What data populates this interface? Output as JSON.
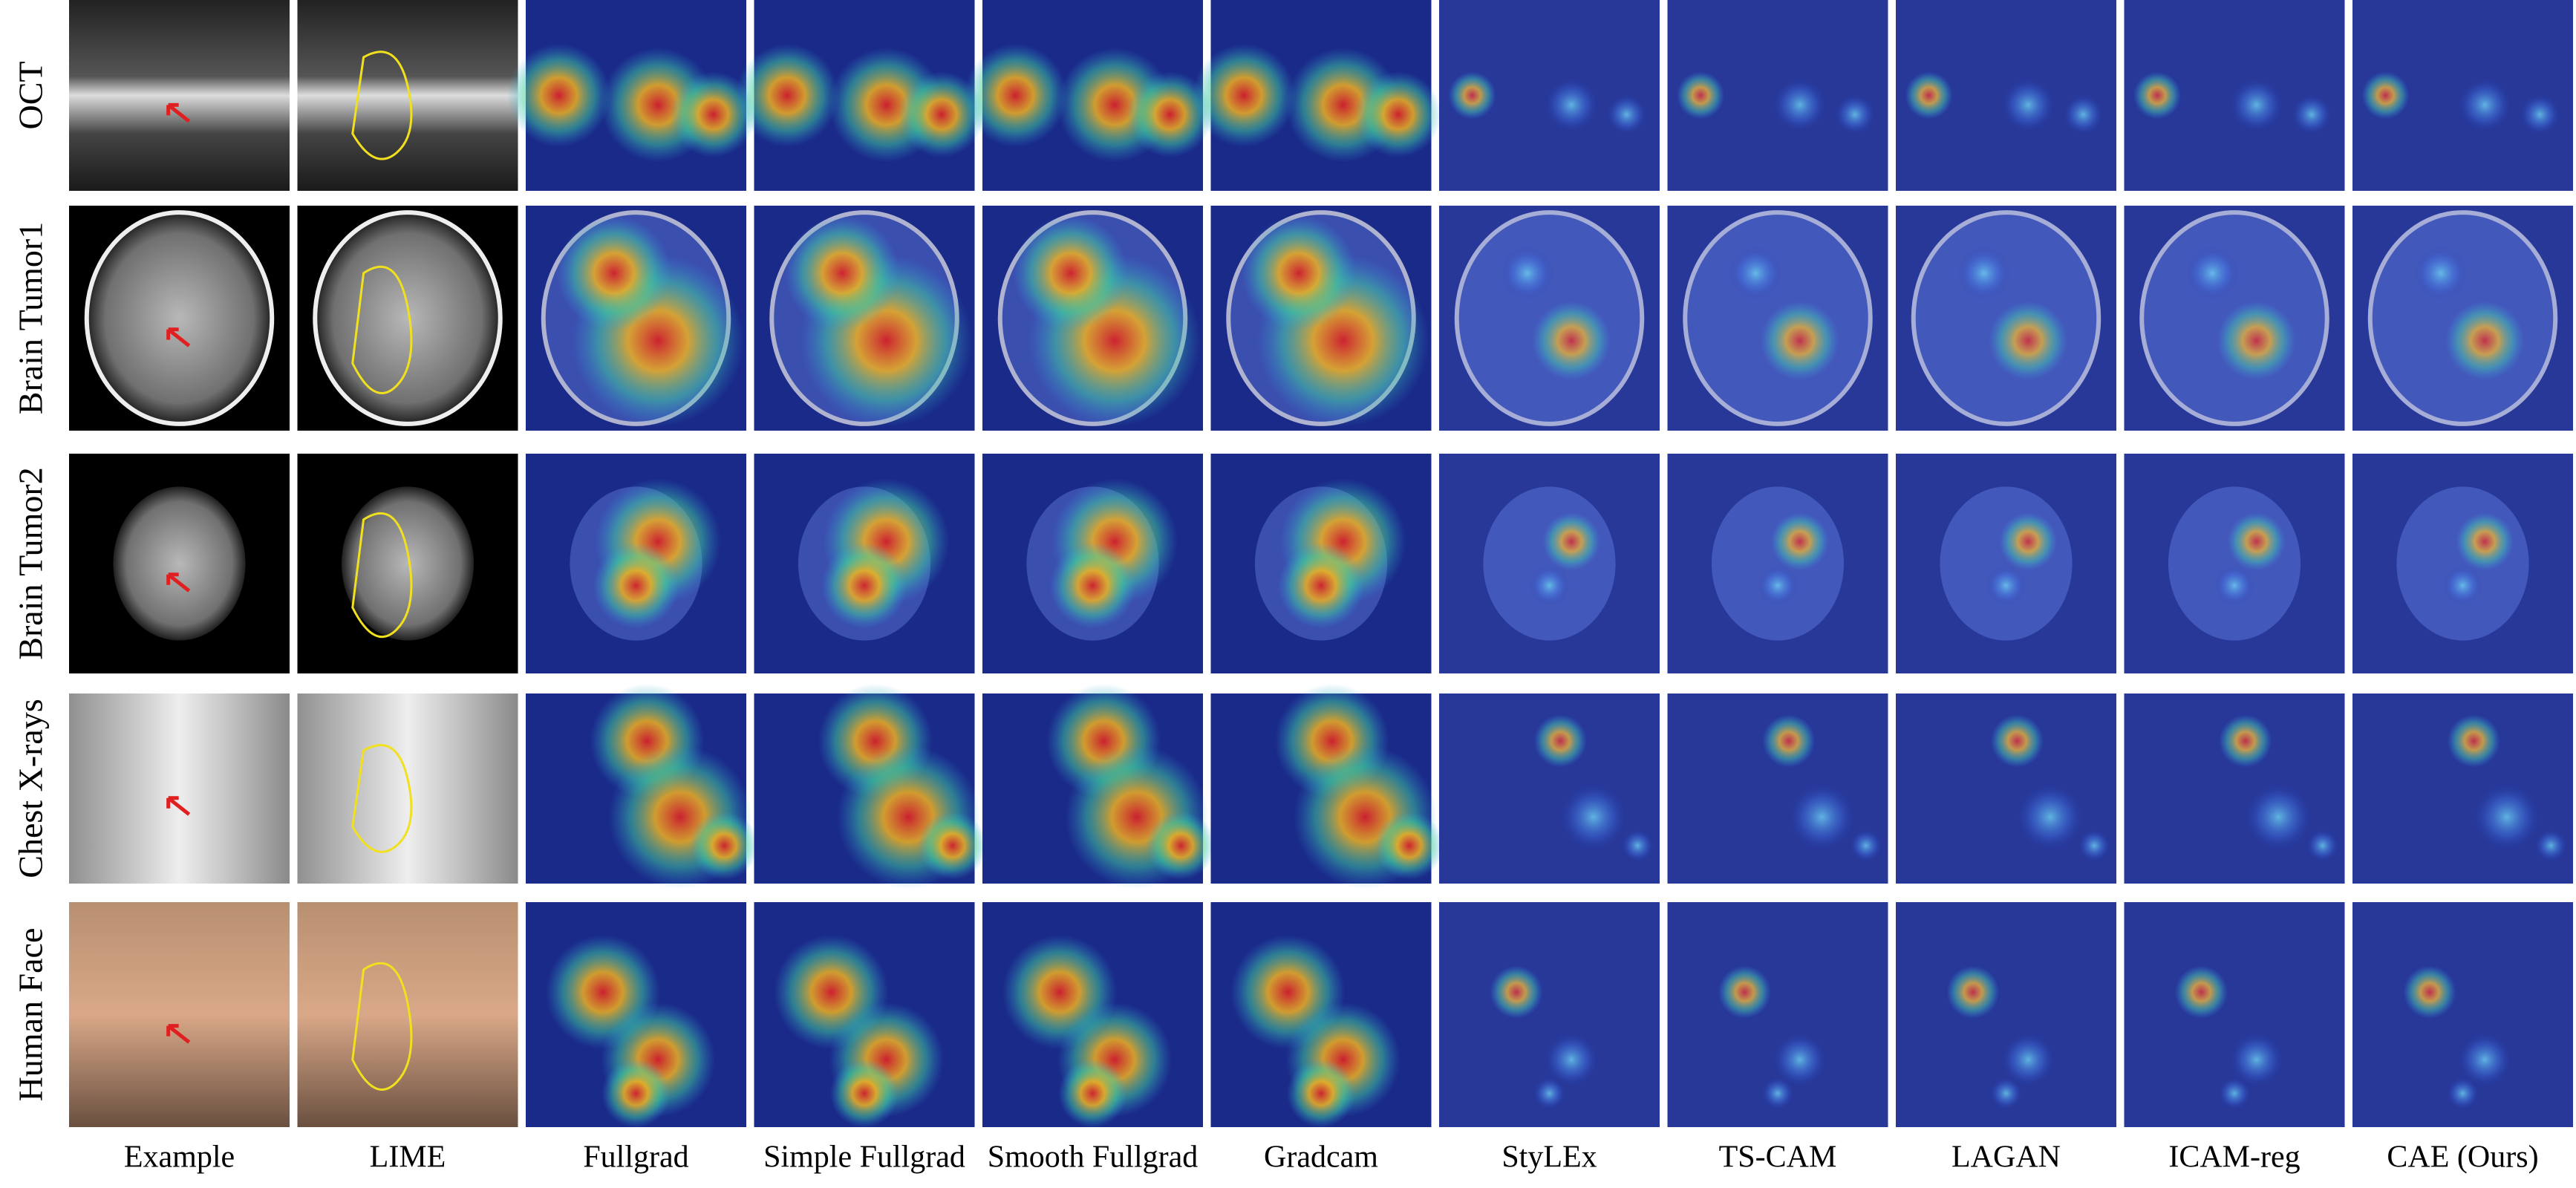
{
  "figure": {
    "row_labels": [
      "OCT",
      "Brain Tumor1",
      "Brain Tumor2",
      "Chest X-rays",
      "Human Face"
    ],
    "column_labels": [
      "Example",
      "LIME",
      "Fullgrad",
      "Simple Fullgrad",
      "Smooth Fullgrad",
      "Gradcam",
      "StyLEx",
      "TS-CAM",
      "LAGAN",
      "ICAM-reg",
      "CAE (Ours)"
    ]
  }
}
